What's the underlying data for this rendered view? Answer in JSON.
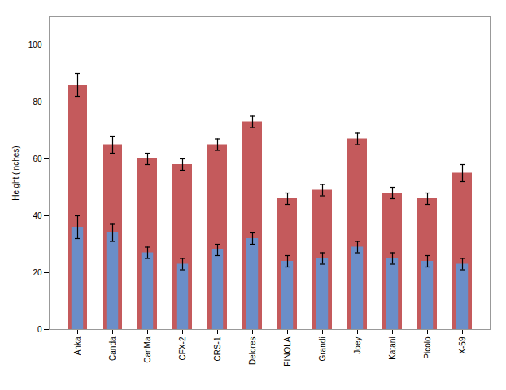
{
  "chart_data": {
    "type": "bar",
    "categories": [
      "Anka",
      "Canda",
      "CanMa",
      "CFX-2",
      "CRS-1",
      "Delores",
      "FINOLA",
      "Grandi",
      "Joey",
      "Katani",
      "Picolo",
      "X-59"
    ],
    "series": [
      {
        "color": "#C45A5C",
        "values": [
          86,
          65,
          60,
          58,
          65,
          73,
          46,
          49,
          67,
          48,
          46,
          55
        ],
        "errors": [
          4,
          3,
          2,
          2,
          2,
          2,
          2,
          2,
          2,
          2,
          2,
          3
        ]
      },
      {
        "color": "#6B8EC8",
        "values": [
          36,
          34,
          27,
          23,
          28,
          32,
          24,
          25,
          29,
          25,
          24,
          23
        ],
        "errors": [
          4,
          3,
          2,
          2,
          2,
          2,
          2,
          2,
          2,
          2,
          2,
          2
        ]
      }
    ],
    "ylabel": "Height (inches)",
    "ylim": [
      0,
      110
    ],
    "yticks": [
      0,
      20,
      40,
      60,
      80,
      100
    ],
    "grid": false
  }
}
